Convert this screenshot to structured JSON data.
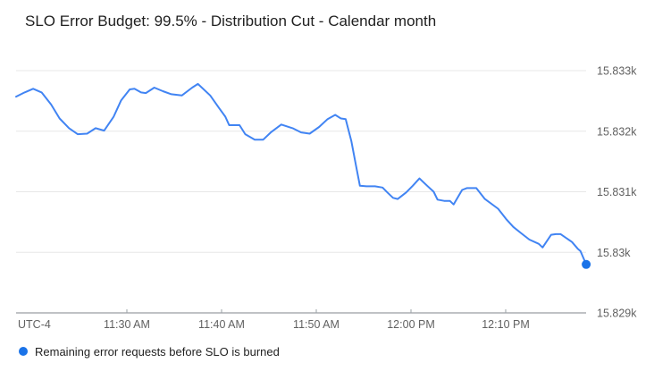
{
  "title": "SLO Error Budget: 99.5% - Distribution Cut - Calendar month",
  "legend": {
    "label": "Remaining error requests before SLO is burned"
  },
  "colors": {
    "line": "#4184f3",
    "endpoint_dot": "#1a73e8",
    "legend_dot": "#1a73e8",
    "gridline": "#e7e7e7",
    "axis_line": "#80868b",
    "tick_mark": "#9aa0a6",
    "axis_text": "#616161",
    "title_text": "#212121",
    "background": "#ffffff"
  },
  "chart_data": {
    "type": "line",
    "title": "SLO Error Budget: 99.5% - Distribution Cut - Calendar month",
    "timezone_label": "UTC-4",
    "grid": true,
    "legend_position": "bottom-left",
    "x_axis": {
      "unit": "minutes after 11:00 AM (UTC-4)",
      "range_minutes": [
        18.3,
        78.5
      ],
      "ticks": [
        {
          "label": "11:30 AM",
          "minutes": 30
        },
        {
          "label": "11:40 AM",
          "minutes": 40
        },
        {
          "label": "11:50 AM",
          "minutes": 50
        },
        {
          "label": "12:00 PM",
          "minutes": 60
        },
        {
          "label": "12:10 PM",
          "minutes": 70
        }
      ]
    },
    "y_axis": {
      "unit": "remaining error requests",
      "baseline_value": 15829,
      "ticks": [
        {
          "label": "15.833k",
          "value": 15833
        },
        {
          "label": "15.832k",
          "value": 15832
        },
        {
          "label": "15.831k",
          "value": 15831
        },
        {
          "label": "15.83k",
          "value": 15830
        },
        {
          "label": "15.829k",
          "value": 15829
        }
      ]
    },
    "series": [
      {
        "name": "Remaining error requests before SLO is burned",
        "points": [
          [
            18.3,
            15832.57
          ],
          [
            19.2,
            15832.64
          ],
          [
            20.1,
            15832.7
          ],
          [
            21.0,
            15832.64
          ],
          [
            22.0,
            15832.44
          ],
          [
            22.9,
            15832.21
          ],
          [
            23.9,
            15832.05
          ],
          [
            24.8,
            15831.95
          ],
          [
            25.8,
            15831.96
          ],
          [
            26.7,
            15832.05
          ],
          [
            27.6,
            15832.01
          ],
          [
            28.6,
            15832.24
          ],
          [
            29.4,
            15832.51
          ],
          [
            30.3,
            15832.69
          ],
          [
            30.8,
            15832.7
          ],
          [
            31.5,
            15832.64
          ],
          [
            32.0,
            15832.63
          ],
          [
            32.6,
            15832.69
          ],
          [
            32.9,
            15832.72
          ],
          [
            33.8,
            15832.66
          ],
          [
            34.7,
            15832.61
          ],
          [
            35.8,
            15832.59
          ],
          [
            36.9,
            15832.72
          ],
          [
            37.5,
            15832.78
          ],
          [
            38.8,
            15832.59
          ],
          [
            39.7,
            15832.39
          ],
          [
            40.4,
            15832.24
          ],
          [
            40.8,
            15832.1
          ],
          [
            41.9,
            15832.1
          ],
          [
            42.5,
            15831.95
          ],
          [
            43.5,
            15831.86
          ],
          [
            44.4,
            15831.86
          ],
          [
            45.2,
            15831.98
          ],
          [
            46.3,
            15832.11
          ],
          [
            47.5,
            15832.05
          ],
          [
            48.4,
            15831.98
          ],
          [
            49.3,
            15831.96
          ],
          [
            50.3,
            15832.07
          ],
          [
            51.2,
            15832.2
          ],
          [
            52.0,
            15832.27
          ],
          [
            52.6,
            15832.21
          ],
          [
            53.1,
            15832.2
          ],
          [
            53.7,
            15831.84
          ],
          [
            54.2,
            15831.43
          ],
          [
            54.6,
            15831.1
          ],
          [
            55.3,
            15831.09
          ],
          [
            56.2,
            15831.09
          ],
          [
            57.0,
            15831.07
          ],
          [
            57.5,
            15830.99
          ],
          [
            58.1,
            15830.9
          ],
          [
            58.6,
            15830.88
          ],
          [
            59.5,
            15830.99
          ],
          [
            60.2,
            15831.1
          ],
          [
            60.9,
            15831.22
          ],
          [
            61.7,
            15831.1
          ],
          [
            62.4,
            15831.0
          ],
          [
            62.8,
            15830.87
          ],
          [
            63.5,
            15830.85
          ],
          [
            64.1,
            15830.85
          ],
          [
            64.5,
            15830.79
          ],
          [
            65.4,
            15831.03
          ],
          [
            65.9,
            15831.06
          ],
          [
            66.9,
            15831.06
          ],
          [
            67.8,
            15830.88
          ],
          [
            69.2,
            15830.72
          ],
          [
            70.1,
            15830.54
          ],
          [
            70.8,
            15830.42
          ],
          [
            71.6,
            15830.32
          ],
          [
            72.5,
            15830.21
          ],
          [
            73.5,
            15830.14
          ],
          [
            73.9,
            15830.08
          ],
          [
            74.8,
            15830.29
          ],
          [
            75.3,
            15830.3
          ],
          [
            75.8,
            15830.3
          ],
          [
            77.0,
            15830.17
          ],
          [
            77.6,
            15830.06
          ],
          [
            77.9,
            15830.02
          ],
          [
            78.5,
            15829.8
          ]
        ]
      }
    ]
  }
}
